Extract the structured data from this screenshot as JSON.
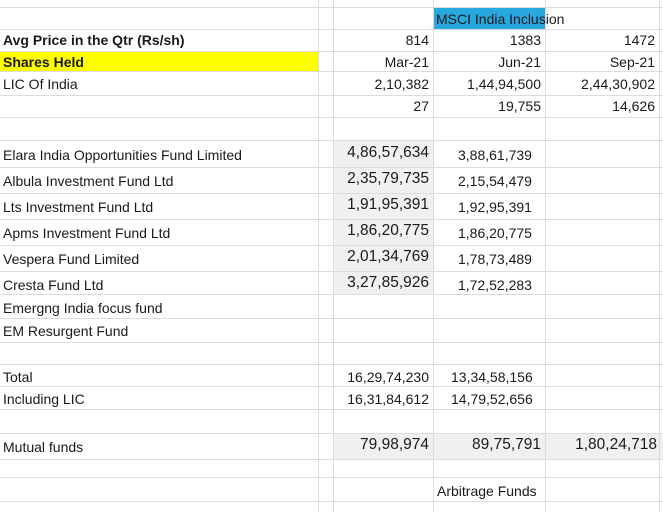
{
  "msci_label": "MSCI India Inclusion",
  "header": {
    "avg_price_label": "Avg Price in the Qtr (Rs/sh)",
    "shares_held_label": "Shares Held",
    "lic_label": "LIC Of India",
    "avg_prices": [
      "814",
      "1383",
      "1472"
    ],
    "quarters": [
      "Mar-21",
      "Jun-21",
      "Sep-21"
    ],
    "lic_shares": [
      "2,10,382",
      "1,44,94,500",
      "2,44,30,902"
    ],
    "lic_row2": [
      "27",
      "19,755",
      "14,626"
    ]
  },
  "funds": [
    {
      "name": "Elara India Opportunities Fund Limited",
      "mar": "4,86,57,634",
      "jun": "3,88,61,739"
    },
    {
      "name": "Albula Investment Fund Ltd",
      "mar": "2,35,79,735",
      "jun": "2,15,54,479"
    },
    {
      "name": "Lts Investment Fund Ltd",
      "mar": "1,91,95,391",
      "jun": "1,92,95,391"
    },
    {
      "name": "Apms Investment Fund Ltd",
      "mar": "1,86,20,775",
      "jun": "1,86,20,775"
    },
    {
      "name": "Vespera Fund Limited",
      "mar": "2,01,34,769",
      "jun": "1,78,73,489"
    },
    {
      "name": "Cresta Fund Ltd",
      "mar": "3,27,85,926",
      "jun": "1,72,52,283"
    },
    {
      "name": "Emergng India focus fund",
      "mar": "",
      "jun": ""
    },
    {
      "name": "EM Resurgent Fund",
      "mar": "",
      "jun": ""
    }
  ],
  "totals": {
    "total_label": "Total",
    "total_mar": "16,29,74,230",
    "total_jun": "13,34,58,156",
    "incl_label": "Including LIC",
    "incl_mar": "16,31,84,612",
    "incl_jun": "14,79,52,656"
  },
  "mutual_funds": {
    "label": "Mutual funds",
    "values": [
      "79,98,974",
      "89,75,791",
      "1,80,24,718"
    ]
  },
  "arbitrage_label": "Arbitrage Funds",
  "colors": {
    "highlight_yellow": "#ffff00",
    "highlight_blue": "#29a8e0",
    "grid": "#dcdcdc",
    "shade": "#f0f0f0"
  }
}
